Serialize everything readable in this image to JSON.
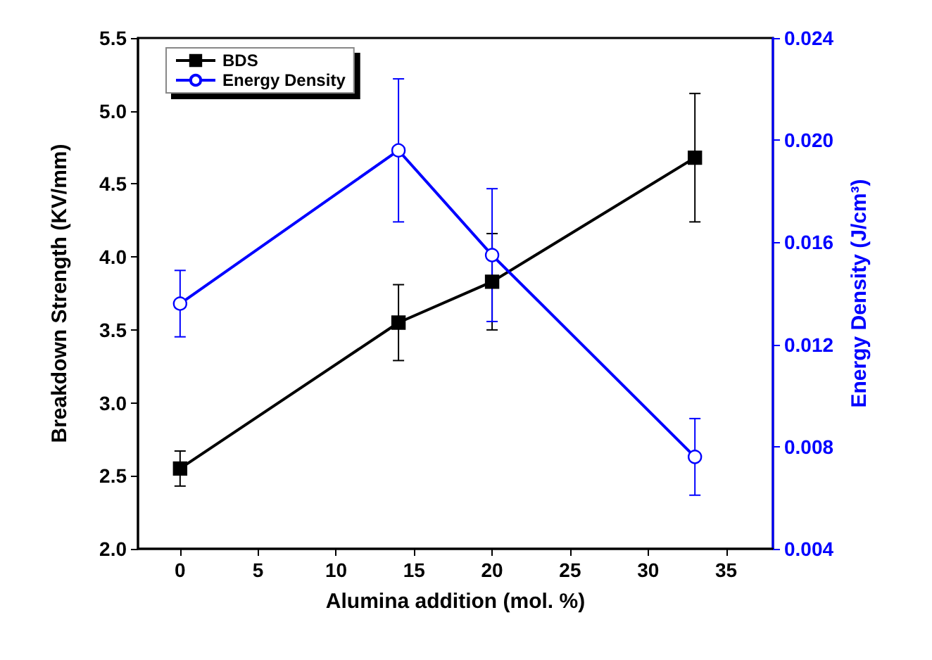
{
  "chart_data": {
    "type": "line",
    "xlabel": "Alumina addition (mol. %)",
    "ylabel": "Breakdown Strength (KV/mm)",
    "y2label": "Energy Density (J/cm³)",
    "x": [
      0,
      14,
      20,
      33
    ],
    "series": [
      {
        "name": "BDS",
        "color": "#000000",
        "marker": "square",
        "values": [
          2.55,
          3.55,
          3.83,
          4.68
        ],
        "errors": [
          0.12,
          0.26,
          0.33,
          0.44
        ]
      },
      {
        "name": "Energy Density",
        "color": "#0000ff",
        "marker": "circle",
        "axis": "y2",
        "values": [
          0.0136,
          0.0196,
          0.0155,
          0.0076
        ],
        "errors": [
          0.0013,
          0.0028,
          0.0026,
          0.0015
        ]
      }
    ],
    "xlim": [
      -2.7,
      38
    ],
    "xticks": [
      0,
      5,
      10,
      15,
      20,
      25,
      30,
      35
    ],
    "ylim": [
      2,
      5.5
    ],
    "yticks": [
      {
        "value": 2,
        "label": "2.0"
      },
      {
        "value": 2.5,
        "label": "2.5"
      },
      {
        "value": 3,
        "label": "3.0"
      },
      {
        "value": 3.5,
        "label": "3.5"
      },
      {
        "value": 4,
        "label": "4.0"
      },
      {
        "value": 4.5,
        "label": "4.5"
      },
      {
        "value": 5,
        "label": "5.0"
      },
      {
        "value": 5.5,
        "label": "5.5"
      }
    ],
    "y2lim": [
      0.004,
      0.024
    ],
    "y2ticks": [
      0.004,
      0.008,
      0.012,
      0.016,
      {
        "value": 0.02,
        "label": "0.020"
      },
      0.024
    ],
    "legend": "top left",
    "grid": false,
    "line_style": "solid"
  }
}
